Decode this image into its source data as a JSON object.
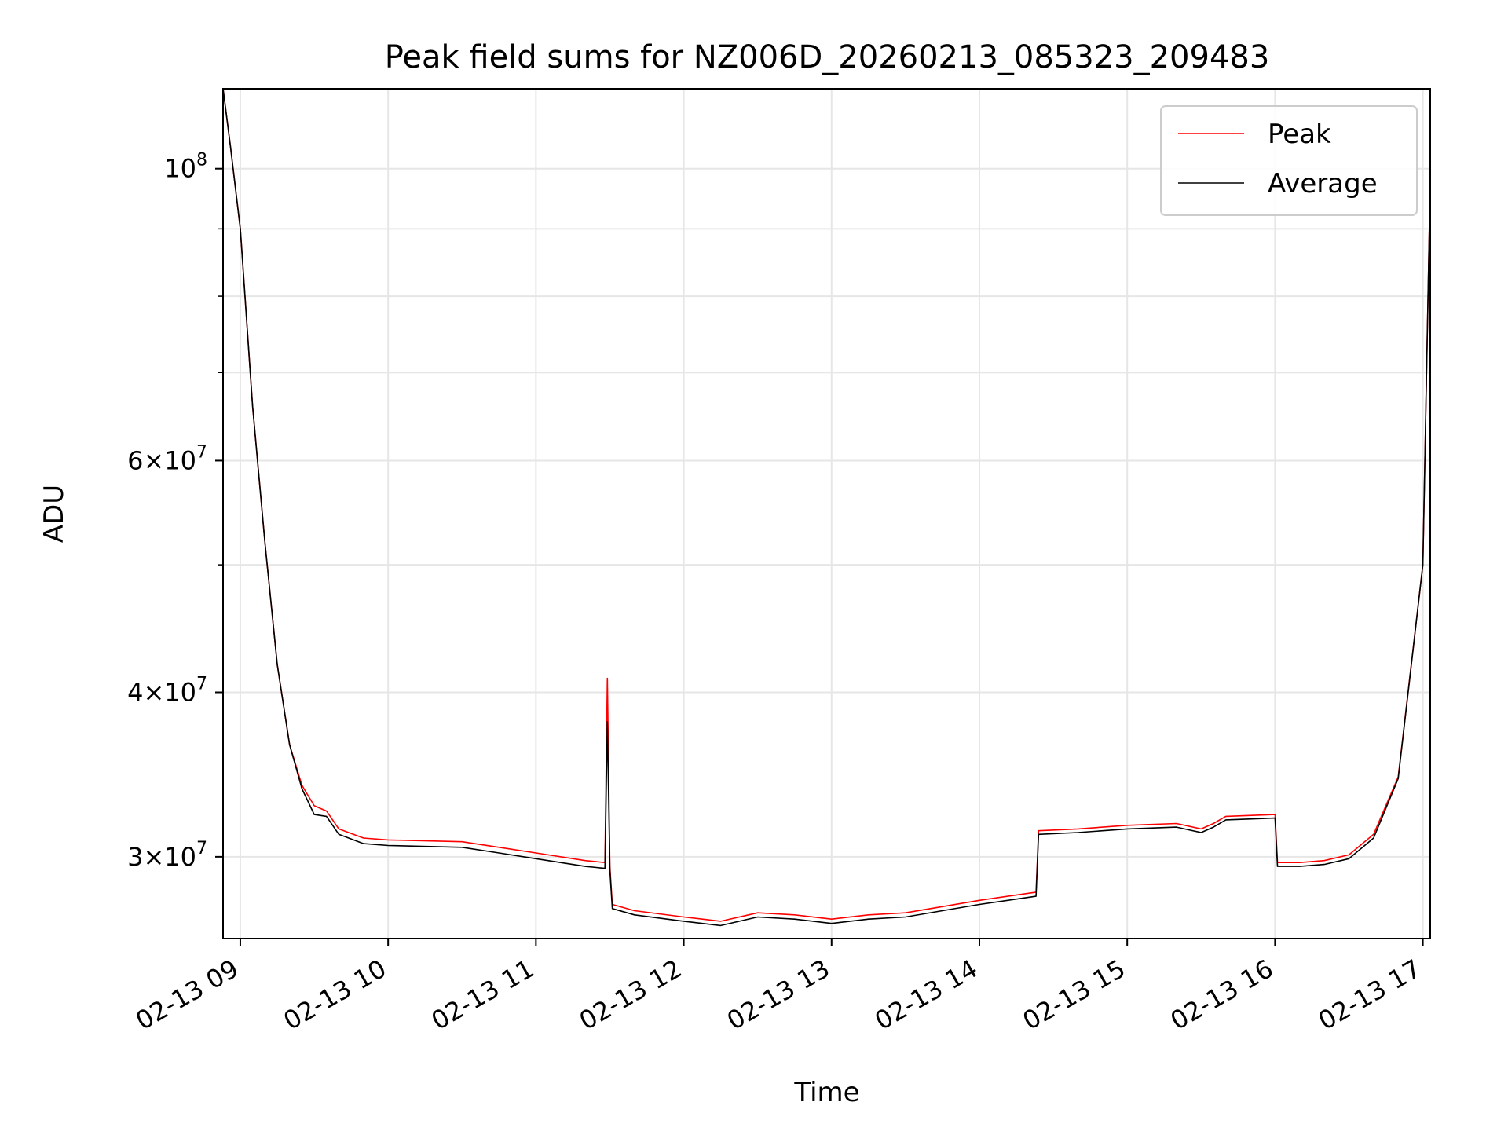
{
  "chart_data": {
    "type": "line",
    "title": "Peak field sums for NZ006D_20260213_085323_209483",
    "xlabel": "Time",
    "ylabel": "ADU",
    "yscale": "log",
    "ylim": [
      26000000,
      115000000
    ],
    "xlim": [
      "2026-02-13 08:53",
      "2026-02-13 17:03"
    ],
    "grid": true,
    "legend_position": "top-right",
    "x_ticks": [
      {
        "t": "2026-02-13 09:00",
        "label": "02-13 09"
      },
      {
        "t": "2026-02-13 10:00",
        "label": "02-13 10"
      },
      {
        "t": "2026-02-13 11:00",
        "label": "02-13 11"
      },
      {
        "t": "2026-02-13 12:00",
        "label": "02-13 12"
      },
      {
        "t": "2026-02-13 13:00",
        "label": "02-13 13"
      },
      {
        "t": "2026-02-13 14:00",
        "label": "02-13 14"
      },
      {
        "t": "2026-02-13 15:00",
        "label": "02-13 15"
      },
      {
        "t": "2026-02-13 16:00",
        "label": "02-13 16"
      },
      {
        "t": "2026-02-13 17:00",
        "label": "02-13 17"
      }
    ],
    "y_ticks": [
      {
        "v": 30000000,
        "base": "3",
        "exp": "7"
      },
      {
        "v": 40000000,
        "base": "4",
        "exp": "7"
      },
      {
        "v": 60000000,
        "base": "6",
        "exp": "7"
      },
      {
        "v": 100000000,
        "base": "",
        "exp": "8"
      }
    ],
    "y_minor_ticks": [
      50000000,
      70000000,
      80000000,
      90000000
    ],
    "series": [
      {
        "name": "Peak",
        "color": "#ff0000",
        "x": [
          "2026-02-13 08:53",
          "2026-02-13 08:56",
          "2026-02-13 09:00",
          "2026-02-13 09:05",
          "2026-02-13 09:10",
          "2026-02-13 09:15",
          "2026-02-13 09:20",
          "2026-02-13 09:25",
          "2026-02-13 09:30",
          "2026-02-13 09:35",
          "2026-02-13 09:40",
          "2026-02-13 09:50",
          "2026-02-13 10:00",
          "2026-02-13 10:30",
          "2026-02-13 10:45",
          "2026-02-13 11:00",
          "2026-02-13 11:20",
          "2026-02-13 11:28",
          "2026-02-13 11:29",
          "2026-02-13 11:30",
          "2026-02-13 11:31",
          "2026-02-13 11:40",
          "2026-02-13 12:00",
          "2026-02-13 12:15",
          "2026-02-13 12:30",
          "2026-02-13 12:45",
          "2026-02-13 13:00",
          "2026-02-13 13:15",
          "2026-02-13 13:30",
          "2026-02-13 14:00",
          "2026-02-13 14:23",
          "2026-02-13 14:24",
          "2026-02-13 14:40",
          "2026-02-13 15:00",
          "2026-02-13 15:20",
          "2026-02-13 15:30",
          "2026-02-13 15:35",
          "2026-02-13 15:40",
          "2026-02-13 16:00",
          "2026-02-13 16:01",
          "2026-02-13 16:10",
          "2026-02-13 16:20",
          "2026-02-13 16:30",
          "2026-02-13 16:40",
          "2026-02-13 16:50",
          "2026-02-13 17:00",
          "2026-02-13 17:03"
        ],
        "values": [
          115000000,
          104000000,
          90000000,
          66000000,
          52000000,
          42000000,
          36500000,
          34000000,
          32800000,
          32500000,
          31500000,
          31000000,
          30900000,
          30800000,
          30500000,
          30200000,
          29800000,
          29700000,
          41000000,
          29500000,
          27600000,
          27300000,
          27000000,
          26800000,
          27200000,
          27100000,
          26900000,
          27100000,
          27200000,
          27800000,
          28200000,
          31400000,
          31500000,
          31700000,
          31800000,
          31500000,
          31800000,
          32200000,
          32300000,
          29700000,
          29700000,
          29800000,
          30100000,
          31200000,
          34500000,
          50000000,
          98000000
        ]
      },
      {
        "name": "Average",
        "color": "#000000",
        "x": [
          "2026-02-13 08:53",
          "2026-02-13 08:56",
          "2026-02-13 09:00",
          "2026-02-13 09:05",
          "2026-02-13 09:10",
          "2026-02-13 09:15",
          "2026-02-13 09:20",
          "2026-02-13 09:25",
          "2026-02-13 09:30",
          "2026-02-13 09:35",
          "2026-02-13 09:40",
          "2026-02-13 09:50",
          "2026-02-13 10:00",
          "2026-02-13 10:30",
          "2026-02-13 10:45",
          "2026-02-13 11:00",
          "2026-02-13 11:20",
          "2026-02-13 11:28",
          "2026-02-13 11:29",
          "2026-02-13 11:30",
          "2026-02-13 11:31",
          "2026-02-13 11:40",
          "2026-02-13 12:00",
          "2026-02-13 12:15",
          "2026-02-13 12:30",
          "2026-02-13 12:45",
          "2026-02-13 13:00",
          "2026-02-13 13:15",
          "2026-02-13 13:30",
          "2026-02-13 14:00",
          "2026-02-13 14:23",
          "2026-02-13 14:24",
          "2026-02-13 14:40",
          "2026-02-13 15:00",
          "2026-02-13 15:20",
          "2026-02-13 15:30",
          "2026-02-13 15:35",
          "2026-02-13 15:40",
          "2026-02-13 16:00",
          "2026-02-13 16:01",
          "2026-02-13 16:10",
          "2026-02-13 16:20",
          "2026-02-13 16:30",
          "2026-02-13 16:40",
          "2026-02-13 16:50",
          "2026-02-13 17:00",
          "2026-02-13 17:03"
        ],
        "values": [
          115000000,
          104000000,
          90000000,
          66000000,
          52000000,
          42000000,
          36500000,
          33800000,
          32300000,
          32200000,
          31200000,
          30700000,
          30600000,
          30500000,
          30200000,
          29900000,
          29500000,
          29400000,
          38000000,
          29300000,
          27400000,
          27100000,
          26800000,
          26600000,
          27000000,
          26900000,
          26700000,
          26900000,
          27000000,
          27600000,
          28000000,
          31200000,
          31300000,
          31500000,
          31600000,
          31300000,
          31600000,
          32000000,
          32100000,
          29500000,
          29500000,
          29600000,
          29900000,
          31000000,
          34400000,
          50000000,
          98000000
        ]
      }
    ]
  }
}
